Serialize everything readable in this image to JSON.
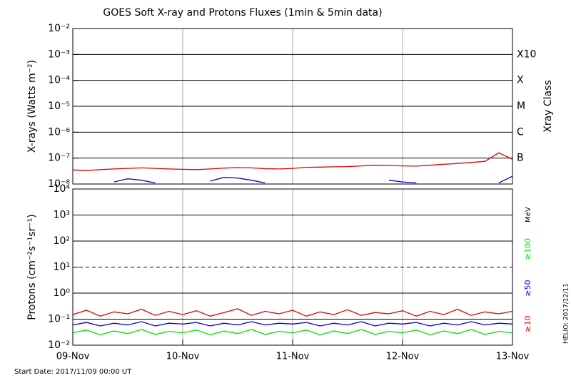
{
  "title": "GOES Soft X-ray and Protons Fluxes   (1min & 5min data)",
  "footer": "Start Date: 2017/11/09 00:00 UT",
  "side_note": "HELIO: 2017/12/11",
  "chart_data": [
    {
      "type": "line",
      "log_y": true,
      "ylabel": "X-rays (Watts m⁻²)",
      "right_axis_title": "Xray Class",
      "xlim": [
        0,
        4
      ],
      "xticks": [
        0,
        1,
        2,
        3,
        4
      ],
      "ylim": [
        1e-08,
        0.01
      ],
      "yticks": [
        {
          "value": 1e-08,
          "label": "10⁻⁸"
        },
        {
          "value": 1e-07,
          "label": "10⁻⁷"
        },
        {
          "value": 1e-06,
          "label": "10⁻⁶"
        },
        {
          "value": 1e-05,
          "label": "10⁻⁵"
        },
        {
          "value": 0.0001,
          "label": "10⁻⁴"
        },
        {
          "value": 0.001,
          "label": "10⁻³"
        },
        {
          "value": 0.01,
          "label": "10⁻²"
        }
      ],
      "class_labels": [
        {
          "value": 0.001,
          "label": "X10"
        },
        {
          "value": 0.0001,
          "label": "X"
        },
        {
          "value": 1e-05,
          "label": "M"
        },
        {
          "value": 1e-06,
          "label": "C"
        },
        {
          "value": 1e-07,
          "label": "B"
        }
      ],
      "grid": true,
      "x": [
        0,
        0.125,
        0.25,
        0.375,
        0.5,
        0.625,
        0.75,
        0.875,
        1,
        1.125,
        1.25,
        1.375,
        1.5,
        1.625,
        1.75,
        1.875,
        2,
        2.125,
        2.25,
        2.375,
        2.5,
        2.625,
        2.75,
        2.875,
        3,
        3.125,
        3.25,
        3.375,
        3.5,
        3.625,
        3.75,
        3.875,
        4
      ],
      "series": [
        {
          "color": "#e00000",
          "values": [
            3.5e-08,
            3.3e-08,
            3.6e-08,
            3.8e-08,
            4e-08,
            4.2e-08,
            4e-08,
            3.8e-08,
            3.7e-08,
            3.6e-08,
            3.8e-08,
            4.1e-08,
            4.3e-08,
            4.2e-08,
            3.9e-08,
            3.8e-08,
            4e-08,
            4.4e-08,
            4.5e-08,
            4.6e-08,
            4.7e-08,
            5e-08,
            5.3e-08,
            5.2e-08,
            5e-08,
            4.9e-08,
            5.3e-08,
            5.8e-08,
            6.2e-08,
            6.8e-08,
            7.5e-08,
            1.6e-07,
            9e-08
          ]
        },
        {
          "color": "#0000d0",
          "values": [
            null,
            null,
            null,
            1.2e-08,
            1.6e-08,
            1.4e-08,
            1.1e-08,
            null,
            null,
            null,
            1.3e-08,
            1.8e-08,
            1.7e-08,
            1.4e-08,
            1.1e-08,
            null,
            null,
            null,
            null,
            null,
            null,
            null,
            null,
            1.4e-08,
            1.2e-08,
            1.1e-08,
            null,
            null,
            null,
            null,
            null,
            1.1e-08,
            2e-08
          ]
        }
      ]
    },
    {
      "type": "line",
      "log_y": true,
      "ylabel": "Protons (cm⁻²s⁻¹sr⁻¹)",
      "unit_label": "MeV",
      "xlim": [
        0,
        4
      ],
      "xticks": [
        {
          "value": 0,
          "label": "09-Nov"
        },
        {
          "value": 1,
          "label": "10-Nov"
        },
        {
          "value": 2,
          "label": "11-Nov"
        },
        {
          "value": 3,
          "label": "12-Nov"
        },
        {
          "value": 4,
          "label": "13-Nov"
        }
      ],
      "ylim": [
        0.01,
        10000.0
      ],
      "yticks": [
        {
          "value": 0.01,
          "label": "10⁻²"
        },
        {
          "value": 0.1,
          "label": "10⁻¹"
        },
        {
          "value": 1,
          "label": "10⁰"
        },
        {
          "value": 10,
          "label": "10¹"
        },
        {
          "value": 100,
          "label": "10²"
        },
        {
          "value": 1000,
          "label": "10³"
        },
        {
          "value": 10000,
          "label": "10⁴"
        }
      ],
      "reference_line": 10,
      "grid": true,
      "x": [
        0,
        0.125,
        0.25,
        0.375,
        0.5,
        0.625,
        0.75,
        0.875,
        1,
        1.125,
        1.25,
        1.375,
        1.5,
        1.625,
        1.75,
        1.875,
        2,
        2.125,
        2.25,
        2.375,
        2.5,
        2.625,
        2.75,
        2.875,
        3,
        3.125,
        3.25,
        3.375,
        3.5,
        3.625,
        3.75,
        3.875,
        4
      ],
      "series": [
        {
          "name": "≥10",
          "color": "#e00000",
          "values": [
            0.15,
            0.22,
            0.13,
            0.19,
            0.16,
            0.24,
            0.14,
            0.2,
            0.15,
            0.21,
            0.13,
            0.18,
            0.25,
            0.14,
            0.2,
            0.16,
            0.22,
            0.13,
            0.19,
            0.15,
            0.23,
            0.14,
            0.18,
            0.16,
            0.21,
            0.13,
            0.2,
            0.15,
            0.24,
            0.14,
            0.19,
            0.16,
            0.2
          ]
        },
        {
          "name": "≥50",
          "color": "#0000d0",
          "values": [
            0.06,
            0.075,
            0.055,
            0.07,
            0.06,
            0.08,
            0.055,
            0.07,
            0.065,
            0.075,
            0.055,
            0.07,
            0.06,
            0.08,
            0.06,
            0.07,
            0.065,
            0.075,
            0.055,
            0.07,
            0.06,
            0.08,
            0.055,
            0.07,
            0.065,
            0.075,
            0.055,
            0.07,
            0.06,
            0.08,
            0.06,
            0.07,
            0.065
          ]
        },
        {
          "name": "≥100",
          "color": "#00e000",
          "values": [
            0.03,
            0.038,
            0.025,
            0.035,
            0.028,
            0.04,
            0.026,
            0.034,
            0.03,
            0.038,
            0.025,
            0.035,
            0.028,
            0.04,
            0.026,
            0.034,
            0.03,
            0.038,
            0.025,
            0.035,
            0.028,
            0.04,
            0.026,
            0.034,
            0.03,
            0.038,
            0.025,
            0.035,
            0.028,
            0.04,
            0.026,
            0.034,
            0.03
          ]
        }
      ]
    }
  ]
}
